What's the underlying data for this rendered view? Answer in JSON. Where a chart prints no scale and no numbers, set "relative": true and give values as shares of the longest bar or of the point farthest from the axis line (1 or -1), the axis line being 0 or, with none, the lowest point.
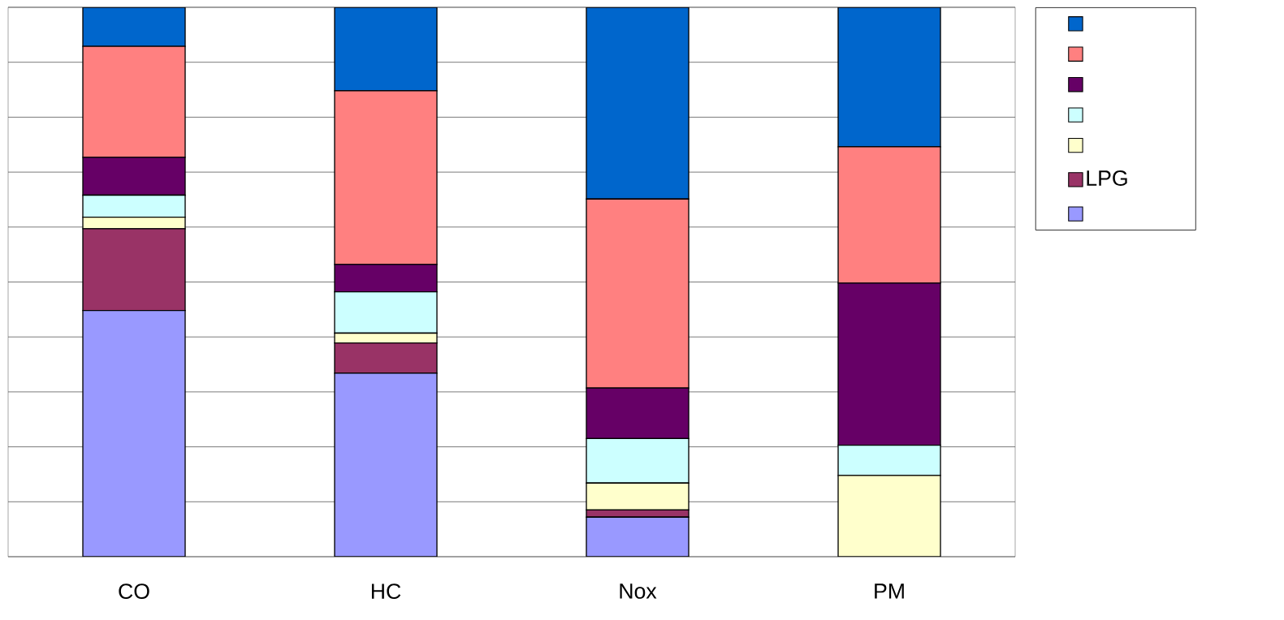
{
  "chart_data": {
    "type": "bar",
    "stacked": true,
    "relative": true,
    "grid": "y",
    "legend": "right",
    "categories": [
      "CO",
      "HC",
      "Nox",
      "PM"
    ],
    "series": [
      {
        "color": "#9999ff",
        "values": [
          0.448,
          0.334,
          0.072,
          0
        ]
      },
      {
        "name": "LPG",
        "color": "#993366",
        "values": [
          0.149,
          0.055,
          0.013,
          0
        ]
      },
      {
        "color": "#ffffcc",
        "values": [
          0.021,
          0.018,
          0.049,
          0.148
        ]
      },
      {
        "color": "#ccffff",
        "values": [
          0.04,
          0.075,
          0.081,
          0.055
        ]
      },
      {
        "color": "#660066",
        "values": [
          0.069,
          0.05,
          0.092,
          0.295
        ]
      },
      {
        "color": "#ff8080",
        "values": [
          0.202,
          0.316,
          0.344,
          0.248
        ]
      },
      {
        "color": "#0066cc",
        "values": [
          0.071,
          0.152,
          0.349,
          0.254
        ]
      }
    ]
  }
}
